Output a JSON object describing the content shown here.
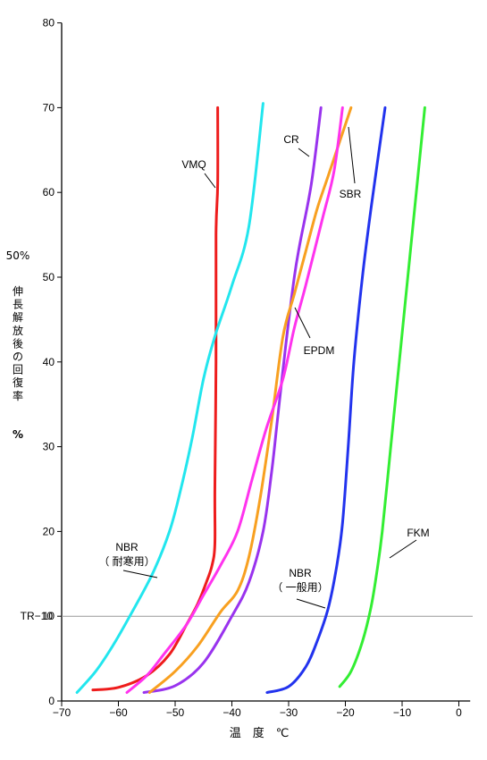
{
  "chart_data": {
    "type": "line",
    "title": "",
    "xlabel": "温　度　℃",
    "ylabel_lines": [
      "50%",
      "伸",
      "長",
      "解",
      "放",
      "後",
      "の",
      "回",
      "復",
      "率",
      "%"
    ],
    "xlim": [
      -70,
      2
    ],
    "ylim": [
      0,
      80
    ],
    "x_ticks": [
      "−70",
      "−60",
      "−50",
      "−40",
      "−30",
      "−20",
      "−10",
      "0"
    ],
    "x_tick_values": [
      -70,
      -60,
      -50,
      -40,
      -30,
      -20,
      -10,
      0
    ],
    "y_ticks": [
      "0",
      "10",
      "20",
      "30",
      "40",
      "50",
      "60",
      "70",
      "80"
    ],
    "y_tick_values": [
      0,
      10,
      20,
      30,
      40,
      50,
      60,
      70,
      80
    ],
    "grid": false,
    "reference_line": {
      "label": "TR−10",
      "y": 10,
      "color": "#999999"
    },
    "series": [
      {
        "name": "VMQ",
        "color": "#ee1c1c",
        "points": [
          [
            -64.5,
            1.3
          ],
          [
            -60,
            1.6
          ],
          [
            -55,
            3
          ],
          [
            -51,
            5.5
          ],
          [
            -48,
            9
          ],
          [
            -46,
            11.5
          ],
          [
            -44.5,
            14
          ],
          [
            -43.5,
            16
          ],
          [
            -43,
            18.5
          ],
          [
            -43,
            25
          ],
          [
            -42.8,
            40
          ],
          [
            -42.8,
            55
          ],
          [
            -42.5,
            61
          ],
          [
            -42.5,
            70
          ]
        ]
      },
      {
        "name": "NBR（耐寒用）",
        "color": "#22e6ee",
        "points": [
          [
            -67.3,
            1
          ],
          [
            -64,
            3.5
          ],
          [
            -61,
            6.5
          ],
          [
            -58,
            10
          ],
          [
            -54,
            15
          ],
          [
            -51,
            20
          ],
          [
            -49,
            25
          ],
          [
            -47,
            31
          ],
          [
            -45,
            38
          ],
          [
            -43,
            43
          ],
          [
            -40,
            49
          ],
          [
            -37,
            56
          ],
          [
            -34.5,
            70.5
          ]
        ]
      },
      {
        "name": "CR",
        "color": "#9933ee",
        "points": [
          [
            -55.5,
            1
          ],
          [
            -50,
            1.8
          ],
          [
            -45,
            4.5
          ],
          [
            -40,
            10
          ],
          [
            -37,
            14
          ],
          [
            -34.5,
            20
          ],
          [
            -33,
            27
          ],
          [
            -32,
            33
          ],
          [
            -30.5,
            42
          ],
          [
            -29,
            50
          ],
          [
            -28,
            54
          ],
          [
            -26,
            61
          ],
          [
            -24.3,
            70
          ]
        ]
      },
      {
        "name": "SBR",
        "color": "#f8a020",
        "points": [
          [
            -54.5,
            1
          ],
          [
            -50,
            3.5
          ],
          [
            -46,
            6.5
          ],
          [
            -42,
            10.5
          ],
          [
            -39,
            13
          ],
          [
            -37,
            17
          ],
          [
            -35,
            24
          ],
          [
            -33,
            33
          ],
          [
            -31,
            43
          ],
          [
            -29,
            48
          ],
          [
            -27,
            53
          ],
          [
            -25,
            58
          ],
          [
            -23,
            62
          ],
          [
            -19,
            70
          ]
        ]
      },
      {
        "name": "EPDM",
        "color": "#ff33ee",
        "points": [
          [
            -58.5,
            1
          ],
          [
            -55,
            3
          ],
          [
            -52,
            5.5
          ],
          [
            -48,
            9
          ],
          [
            -45,
            12.5
          ],
          [
            -42,
            16
          ],
          [
            -39,
            20
          ],
          [
            -36.5,
            26
          ],
          [
            -34,
            32
          ],
          [
            -31,
            38
          ],
          [
            -29,
            44
          ],
          [
            -27,
            49
          ],
          [
            -24,
            57
          ],
          [
            -22,
            62.5
          ],
          [
            -20.5,
            70
          ]
        ]
      },
      {
        "name": "NBR（一般用）",
        "color": "#2233ee",
        "points": [
          [
            -33.8,
            1
          ],
          [
            -30,
            1.7
          ],
          [
            -27,
            4
          ],
          [
            -25,
            7
          ],
          [
            -23,
            11
          ],
          [
            -21.5,
            16
          ],
          [
            -20.5,
            21
          ],
          [
            -19.5,
            30
          ],
          [
            -18.5,
            40
          ],
          [
            -17,
            50
          ],
          [
            -15.5,
            58
          ],
          [
            -13,
            70
          ]
        ]
      },
      {
        "name": "FKM",
        "color": "#33ee33",
        "points": [
          [
            -21,
            1.7
          ],
          [
            -19,
            3.5
          ],
          [
            -17,
            7
          ],
          [
            -15.5,
            11
          ],
          [
            -14.5,
            15
          ],
          [
            -13.5,
            20
          ],
          [
            -12,
            30
          ],
          [
            -10.5,
            40
          ],
          [
            -9,
            50
          ],
          [
            -7.5,
            60
          ],
          [
            -6,
            70
          ]
        ]
      }
    ],
    "annotations": [
      {
        "text": "VMQ",
        "series": 0
      },
      {
        "text": "NBR",
        "text2": "（ 耐寒用）",
        "series": 1
      },
      {
        "text": "CR",
        "series": 2
      },
      {
        "text": "SBR",
        "series": 3
      },
      {
        "text": "EPDM",
        "series": 4
      },
      {
        "text": "NBR",
        "text2": "（ 一般用）",
        "series": 5
      },
      {
        "text": "FKM",
        "series": 6
      }
    ]
  }
}
